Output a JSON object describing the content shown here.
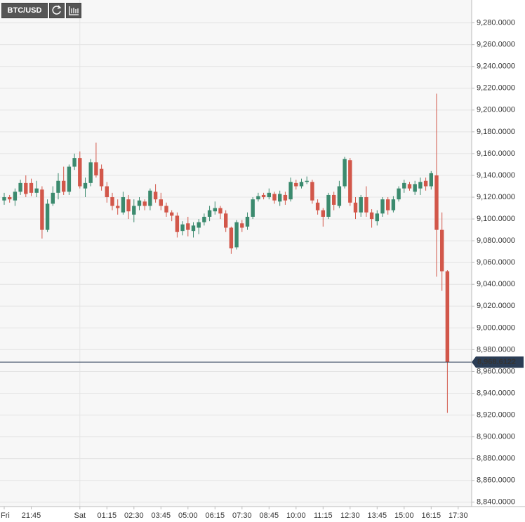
{
  "chart_data": {
    "type": "candlestick",
    "title": "BTC/USD",
    "x": [
      "20:30",
      "20:45",
      "21:00",
      "21:15",
      "21:30",
      "21:45",
      "22:00",
      "22:15",
      "22:30",
      "22:45",
      "23:00",
      "23:15",
      "23:30",
      "23:45",
      "00:00",
      "00:15",
      "00:30",
      "00:45",
      "01:00",
      "01:15",
      "01:30",
      "01:45",
      "02:00",
      "02:15",
      "02:30",
      "02:45",
      "03:00",
      "03:15",
      "03:30",
      "03:45",
      "04:00",
      "04:15",
      "04:30",
      "04:45",
      "05:00",
      "05:15",
      "05:30",
      "05:45",
      "06:00",
      "06:15",
      "06:30",
      "06:45",
      "07:00",
      "07:15",
      "07:30",
      "07:45",
      "08:00",
      "08:15",
      "08:30",
      "08:45",
      "09:00",
      "09:15",
      "09:30",
      "09:45",
      "10:00",
      "10:15",
      "10:30",
      "10:45",
      "11:00",
      "11:15",
      "11:30",
      "11:45",
      "12:00",
      "12:15",
      "12:30",
      "12:45",
      "13:00",
      "13:15",
      "13:30",
      "13:45",
      "14:00",
      "14:15",
      "14:30",
      "14:45",
      "15:00",
      "15:15",
      "15:30",
      "15:45",
      "16:00",
      "16:15",
      "16:30",
      "16:45",
      "17:00",
      "17:15",
      "17:30"
    ],
    "open": [
      9117,
      9120,
      9117,
      9125,
      9133,
      9133,
      9124,
      9127,
      9090,
      9114,
      9124,
      9135,
      9125,
      9148,
      9156,
      9128,
      9133,
      9152,
      9146,
      9130,
      9120,
      9112,
      9106,
      9118,
      9104,
      9112,
      9116,
      9112,
      9125,
      9118,
      9112,
      9106,
      9103,
      9089,
      9096,
      9089,
      9092,
      9097,
      9102,
      9107,
      9110,
      9105,
      9092,
      9074,
      9096,
      9093,
      9102,
      9118,
      9122,
      9120,
      9123,
      9116,
      9122,
      9118,
      9133,
      9130,
      9134,
      9134,
      9115,
      9108,
      9102,
      9122,
      9112,
      9130,
      9154,
      9115,
      9106,
      9120,
      9106,
      9098,
      9105,
      9118,
      9108,
      9118,
      9128,
      9132,
      9125,
      9128,
      9135,
      9130,
      9140,
      9090,
      9052,
      null,
      null
    ],
    "high": [
      9124,
      9122,
      9128,
      9136,
      9140,
      9137,
      9135,
      9130,
      9118,
      9130,
      9142,
      9148,
      9150,
      9160,
      9162,
      9138,
      9155,
      9170,
      9150,
      9134,
      9124,
      9118,
      9125,
      9122,
      9118,
      9120,
      9118,
      9128,
      9132,
      9124,
      9115,
      9108,
      9106,
      9098,
      9102,
      9097,
      9100,
      9105,
      9112,
      9116,
      9112,
      9108,
      9093,
      9099,
      9099,
      9106,
      9120,
      9124,
      9124,
      9128,
      9125,
      9126,
      9125,
      9138,
      9136,
      9137,
      9139,
      9136,
      9118,
      9110,
      9124,
      9125,
      9135,
      9157,
      9156,
      9120,
      9122,
      9130,
      9109,
      9108,
      9120,
      9120,
      9121,
      9130,
      9136,
      9134,
      9135,
      9138,
      9138,
      9144,
      9215,
      9106,
      9053,
      null,
      null
    ],
    "low": [
      9113,
      9115,
      9112,
      9122,
      9120,
      9121,
      9120,
      9082,
      9088,
      9112,
      9118,
      9122,
      9122,
      9145,
      9128,
      9120,
      9130,
      9138,
      9126,
      9115,
      9108,
      9104,
      9104,
      9100,
      9097,
      9108,
      9108,
      9108,
      9115,
      9108,
      9102,
      9098,
      9083,
      9085,
      9084,
      9083,
      9086,
      9094,
      9098,
      9104,
      9100,
      9088,
      9068,
      9072,
      9088,
      9090,
      9100,
      9116,
      9118,
      9118,
      9114,
      9112,
      9113,
      9116,
      9127,
      9128,
      9132,
      9114,
      9104,
      9093,
      9100,
      9108,
      9110,
      9128,
      9112,
      9100,
      9102,
      9102,
      9092,
      9094,
      9102,
      9104,
      9106,
      9116,
      9124,
      9126,
      9122,
      9122,
      9126,
      9127,
      9047,
      9034,
      8922,
      null,
      null
    ],
    "close": [
      9120,
      9118,
      9125,
      9133,
      9123,
      9124,
      9128,
      9090,
      9114,
      9124,
      9135,
      9125,
      9148,
      9156,
      9130,
      9133,
      9152,
      9140,
      9130,
      9120,
      9112,
      9110,
      9120,
      9107,
      9112,
      9117,
      9112,
      9126,
      9118,
      9112,
      9106,
      9103,
      9088,
      9095,
      9090,
      9094,
      9097,
      9102,
      9108,
      9110,
      9105,
      9092,
      9073,
      9097,
      9092,
      9102,
      9118,
      9121,
      9120,
      9124,
      9117,
      9123,
      9117,
      9134,
      9130,
      9134,
      9135,
      9117,
      9108,
      9102,
      9122,
      9113,
      9130,
      9155,
      9115,
      9106,
      9120,
      9106,
      9100,
      9105,
      9118,
      9108,
      9118,
      9128,
      9133,
      9128,
      9132,
      9134,
      9130,
      9142,
      9090,
      9052,
      8968.6122,
      null,
      null
    ],
    "up_color": "#3b8a6e",
    "down_color": "#d2574a",
    "ylim": [
      8836,
      9301
    ],
    "yticks": [
      {
        "value": 8840,
        "label": "8,840.0000"
      },
      {
        "value": 8860,
        "label": "8,860.0000"
      },
      {
        "value": 8880,
        "label": "8,880.0000"
      },
      {
        "value": 8900,
        "label": "8,900.0000"
      },
      {
        "value": 8920,
        "label": "8,920.0000"
      },
      {
        "value": 8940,
        "label": "8,940.0000"
      },
      {
        "value": 8960,
        "label": "8,960.0000"
      },
      {
        "value": 8980,
        "label": "8,980.0000"
      },
      {
        "value": 9000,
        "label": "9,000.0000"
      },
      {
        "value": 9020,
        "label": "9,020.0000"
      },
      {
        "value": 9040,
        "label": "9,040.0000"
      },
      {
        "value": 9060,
        "label": "9,060.0000"
      },
      {
        "value": 9080,
        "label": "9,080.0000"
      },
      {
        "value": 9100,
        "label": "9,100.0000"
      },
      {
        "value": 9120,
        "label": "9,120.0000"
      },
      {
        "value": 9140,
        "label": "9,140.0000"
      },
      {
        "value": 9160,
        "label": "9,160.0000"
      },
      {
        "value": 9180,
        "label": "9,180.0000"
      },
      {
        "value": 9200,
        "label": "9,200.0000"
      },
      {
        "value": 9220,
        "label": "9,220.0000"
      },
      {
        "value": 9240,
        "label": "9,240.0000"
      },
      {
        "value": 9260,
        "label": "9,260.0000"
      },
      {
        "value": 9280,
        "label": "9,280.0000"
      }
    ],
    "xticks": [
      {
        "value": "20:30",
        "label": "Fri"
      },
      "21:45",
      {
        "value": "00:00",
        "label": "Sat"
      },
      "01:15",
      "02:30",
      "03:45",
      "05:00",
      "06:15",
      "07:30",
      "08:45",
      "10:00",
      "11:15",
      "12:30",
      "13:45",
      "15:00",
      "16:15",
      "17:30"
    ],
    "current_price": {
      "value": 8968.6122,
      "label": "8,968.6122"
    },
    "grid": true
  }
}
